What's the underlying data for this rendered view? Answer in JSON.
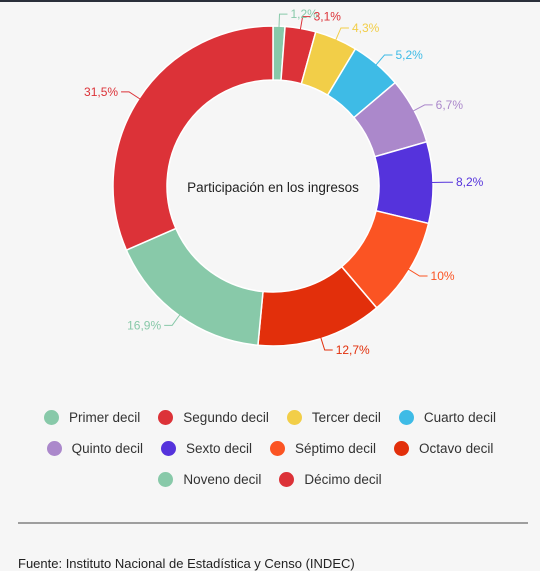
{
  "chart_data": {
    "type": "pie",
    "title": "",
    "center_label": "Participación en los ingresos",
    "categories": [
      "Primer decil",
      "Segundo decil",
      "Tercer decil",
      "Cuarto decil",
      "Quinto decil",
      "Sexto decil",
      "Séptimo decil",
      "Octavo decil",
      "Noveno decil",
      "Décimo decil"
    ],
    "values": [
      1.2,
      3.1,
      4.3,
      5.2,
      6.7,
      8.2,
      10,
      12.7,
      16.9,
      31.5
    ],
    "value_labels": [
      "1,2%",
      "3,1%",
      "4,3%",
      "5,2%",
      "6,7%",
      "8,2%",
      "10%",
      "12,7%",
      "16,9%",
      "31,5%"
    ],
    "colors": [
      "#88c9a9",
      "#dc3238",
      "#f2ce48",
      "#3ebbe6",
      "#ab88cb",
      "#5533dc",
      "#fb5423",
      "#e22f0b",
      "#88c9a9",
      "#dc3238"
    ],
    "legend_position": "bottom"
  },
  "footer": {
    "source": "Fuente: Instituto Nacional de Estadística y Censo (INDEC)"
  }
}
